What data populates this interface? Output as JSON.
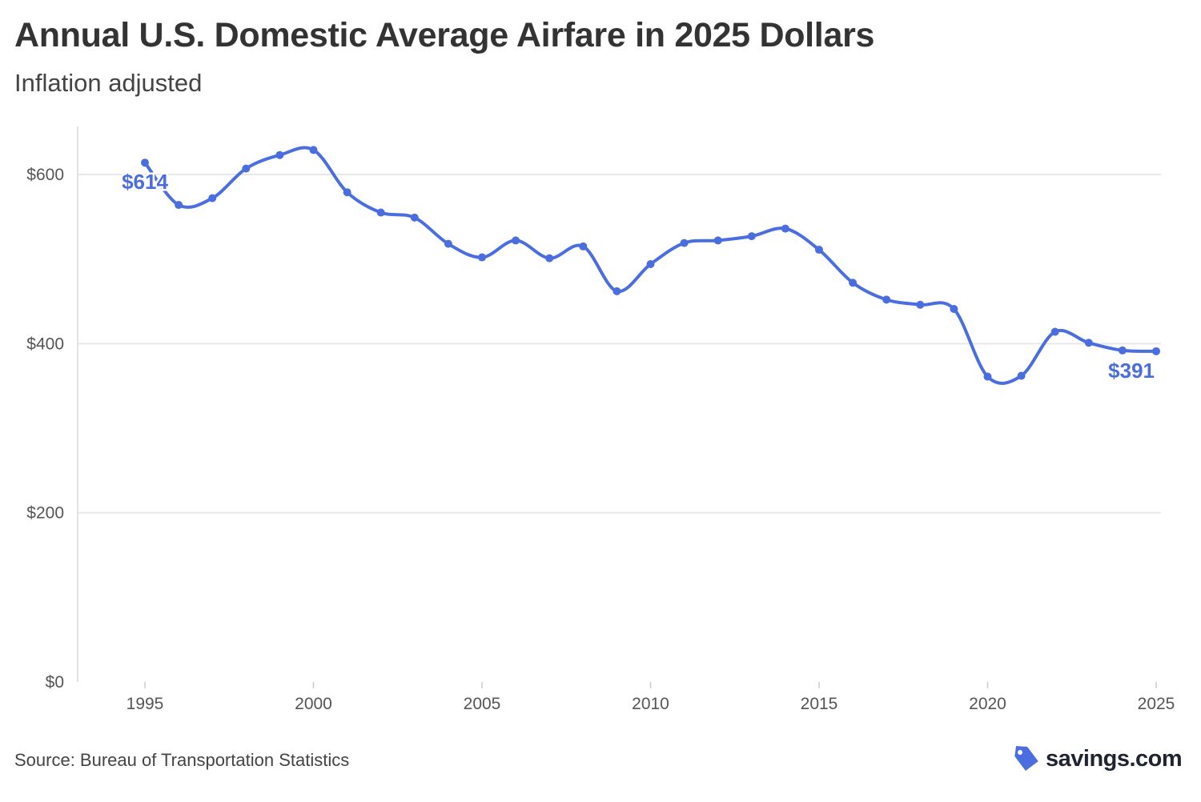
{
  "title": "Annual U.S. Domestic Average Airfare in 2025 Dollars",
  "subtitle": "Inflation adjusted",
  "source": "Source: Bureau of Transportation Statistics",
  "logo": {
    "text": "savings.com",
    "icon": "price-tag-icon",
    "color": "#4a6ee0"
  },
  "chart_data": {
    "type": "line",
    "title": "Annual U.S. Domestic Average Airfare in 2025 Dollars",
    "subtitle": "Inflation adjusted",
    "xlabel": "",
    "ylabel": "",
    "color": "#4a6ee0",
    "grid": "horizontal",
    "xlim": [
      1995,
      2025
    ],
    "ylim": [
      0,
      650
    ],
    "x_ticks": [
      "1995",
      "2000",
      "2005",
      "2010",
      "2015",
      "2020",
      "2025"
    ],
    "y_ticks": [
      "$0",
      "$200",
      "$400",
      "$600"
    ],
    "x": [
      1995,
      1996,
      1997,
      1998,
      1999,
      2000,
      2001,
      2002,
      2003,
      2004,
      2005,
      2006,
      2007,
      2008,
      2009,
      2010,
      2011,
      2012,
      2013,
      2014,
      2015,
      2016,
      2017,
      2018,
      2019,
      2020,
      2021,
      2022,
      2023,
      2024,
      2025
    ],
    "values": [
      614,
      564,
      572,
      607,
      623,
      629,
      579,
      555,
      549,
      518,
      502,
      522,
      501,
      515,
      462,
      494,
      519,
      522,
      527,
      536,
      511,
      472,
      452,
      446,
      441,
      361,
      362,
      414,
      401,
      392,
      391
    ],
    "annotations": [
      {
        "x": 1995,
        "text": "$614"
      },
      {
        "x": 2025,
        "text": "$391"
      }
    ]
  }
}
